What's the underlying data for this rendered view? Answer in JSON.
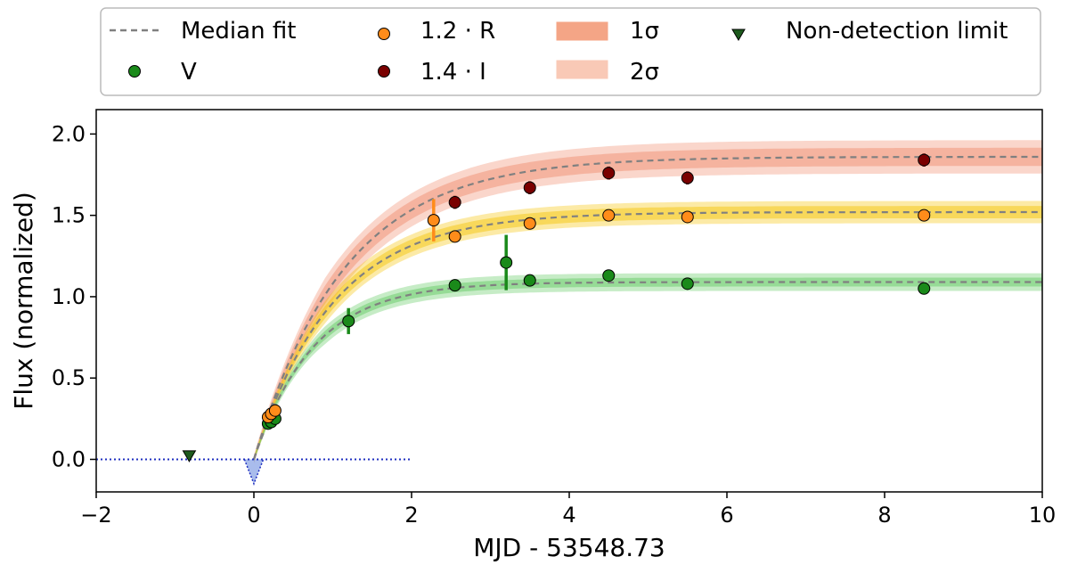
{
  "chart_data": {
    "type": "scatter",
    "xlabel": "MJD - 53548.73",
    "ylabel": "Flux (normalized)",
    "xlim": [
      -2,
      10
    ],
    "ylim": [
      -0.2,
      2.15
    ],
    "xticks": [
      -2,
      0,
      2,
      4,
      6,
      8,
      10
    ],
    "xtick_labels": [
      "−2",
      "0",
      "2",
      "4",
      "6",
      "8",
      "10"
    ],
    "yticks": [
      0.0,
      0.5,
      1.0,
      1.5,
      2.0
    ],
    "ytick_labels": [
      "0.0",
      "0.5",
      "1.0",
      "1.5",
      "2.0"
    ],
    "grid": false,
    "legend_placement": "top, above plot",
    "legend": {
      "median_fit": "Median fit",
      "v": "V",
      "r": "1.2 · R",
      "i": "1.4 · I",
      "sigma1": "1σ",
      "sigma2": "2σ",
      "nondetect": "Non-detection limit"
    },
    "colors": {
      "V": "#1a8a1a",
      "R": "#ff8c1a",
      "I": "#7a0000",
      "median": "#808080",
      "band_V": "#5cc85c",
      "band_R": "#f5c400",
      "band_I": "#f08a6a",
      "legend_sigma1": "#f4a586",
      "legend_sigma2": "#f9c9b6",
      "nondetect": "#1d5a1d",
      "baseline": "#2030c0",
      "baseline_fill": "#7090e0"
    },
    "model": {
      "t0": 0.0,
      "V": {
        "amplitude": 1.09,
        "tau": 0.75
      },
      "R": {
        "amplitude": 1.52,
        "tau": 1.0
      },
      "I": {
        "amplitude": 1.86,
        "tau": 1.15
      }
    },
    "series": [
      {
        "name": "V",
        "points": [
          {
            "x": 0.18,
            "y": 0.22,
            "err": 0.02
          },
          {
            "x": 0.22,
            "y": 0.23,
            "err": 0.02
          },
          {
            "x": 0.27,
            "y": 0.25,
            "err": 0.02
          },
          {
            "x": 1.2,
            "y": 0.85,
            "err": 0.08
          },
          {
            "x": 2.55,
            "y": 1.07,
            "err": 0.02
          },
          {
            "x": 3.2,
            "y": 1.21,
            "err": 0.17
          },
          {
            "x": 3.5,
            "y": 1.1,
            "err": 0.02
          },
          {
            "x": 4.5,
            "y": 1.13,
            "err": 0.02
          },
          {
            "x": 5.5,
            "y": 1.08,
            "err": 0.02
          },
          {
            "x": 8.5,
            "y": 1.05,
            "err": 0.02
          }
        ]
      },
      {
        "name": "1.2 · R",
        "points": [
          {
            "x": 0.18,
            "y": 0.26,
            "err": 0.02
          },
          {
            "x": 0.22,
            "y": 0.28,
            "err": 0.02
          },
          {
            "x": 0.27,
            "y": 0.3,
            "err": 0.02
          },
          {
            "x": 2.28,
            "y": 1.47,
            "err": 0.13
          },
          {
            "x": 2.55,
            "y": 1.37,
            "err": 0.02
          },
          {
            "x": 3.5,
            "y": 1.45,
            "err": 0.02
          },
          {
            "x": 4.5,
            "y": 1.5,
            "err": 0.02
          },
          {
            "x": 5.5,
            "y": 1.49,
            "err": 0.02
          },
          {
            "x": 8.5,
            "y": 1.5,
            "err": 0.02
          }
        ]
      },
      {
        "name": "1.4 · I",
        "points": [
          {
            "x": 2.55,
            "y": 1.58,
            "err": 0.04
          },
          {
            "x": 3.5,
            "y": 1.67,
            "err": 0.04
          },
          {
            "x": 4.5,
            "y": 1.76,
            "err": 0.04
          },
          {
            "x": 5.5,
            "y": 1.73,
            "err": 0.04
          },
          {
            "x": 8.5,
            "y": 1.84,
            "err": 0.04
          }
        ]
      }
    ],
    "nondetection": [
      {
        "x": -0.82,
        "y": 0.02
      }
    ],
    "baseline": {
      "x": [
        -2,
        2
      ],
      "y": 0.0,
      "dip_x": 0.0,
      "dip_y": -0.15
    }
  }
}
